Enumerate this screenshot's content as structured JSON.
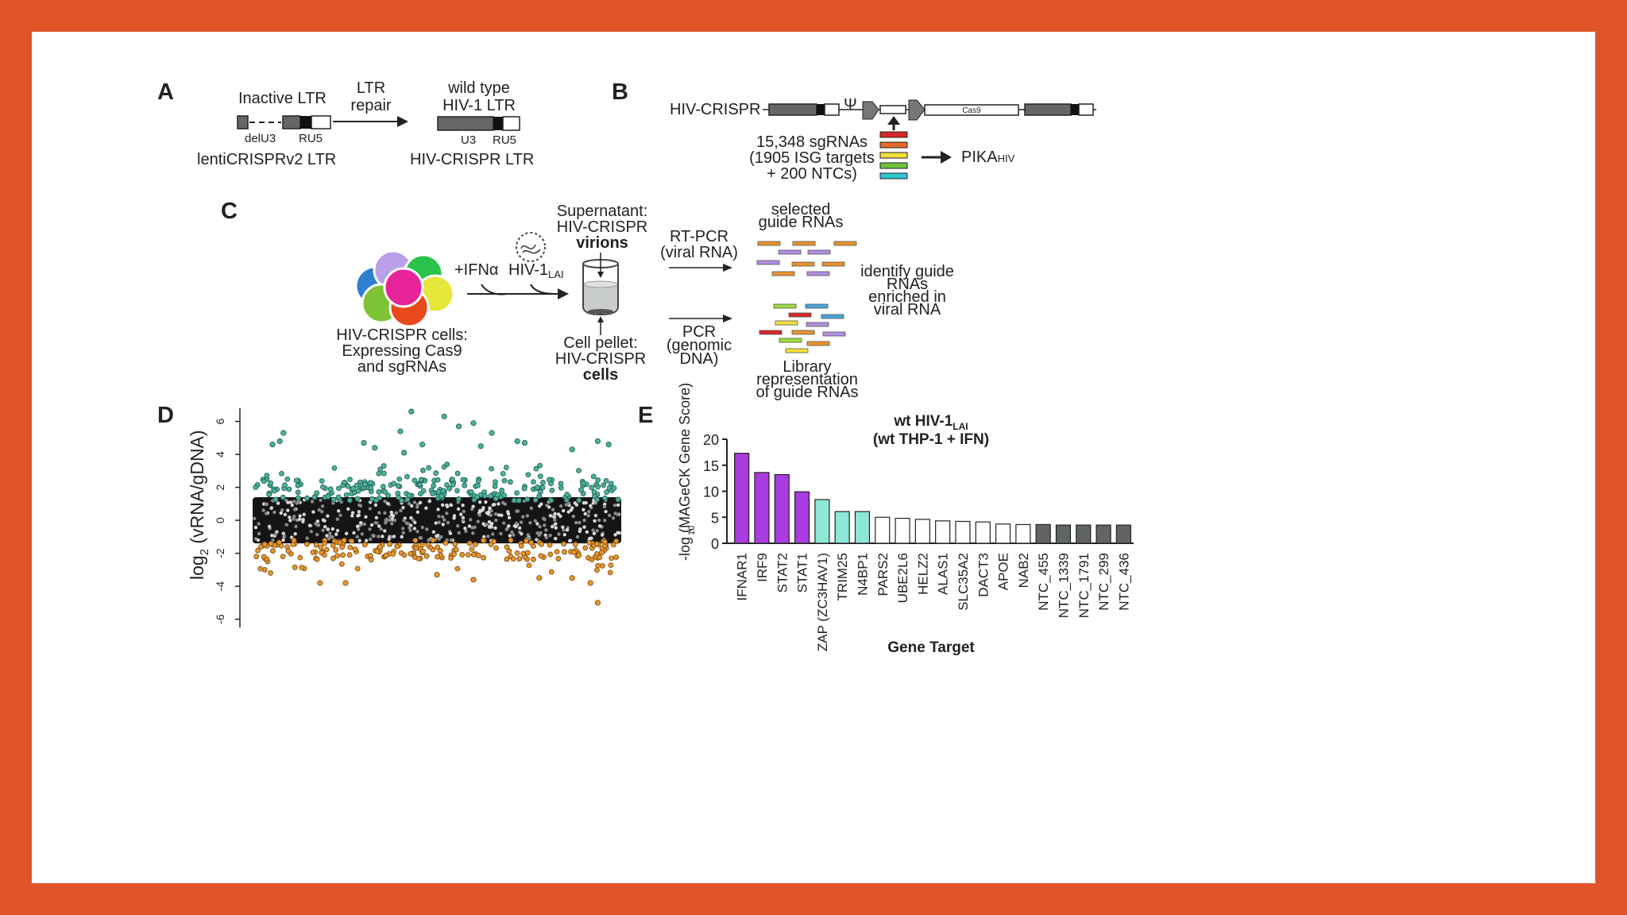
{
  "panels": {
    "a": {
      "label": "A",
      "inactive_ltr": "Inactive LTR",
      "delu3": "delU3",
      "ru5_left": "RU5",
      "lenti": "lentiCRISPRv2 LTR",
      "ltr_repair_1": "LTR",
      "ltr_repair_2": "repair",
      "wild_type_1": "wild type",
      "wild_type_2": "HIV-1 LTR",
      "u3": "U3",
      "ru5_right": "RU5",
      "hiv_crispr_ltr": "HIV-CRISPR LTR"
    },
    "b": {
      "label": "B",
      "construct": "HIV-CRISPR",
      "psi": "Ψ",
      "cas9": "Cas9",
      "lib_1": "15,348 sgRNAs",
      "lib_2": "(1905 ISG targets",
      "lib_3": "+ 200 NTCs)",
      "pika": "PIKA",
      "pika_sub": "HIV"
    },
    "c": {
      "label": "C",
      "cells_1": "HIV-CRISPR cells:",
      "cells_2": "Expressing Cas9",
      "cells_3": "and sgRNAs",
      "ifn": "+IFNα",
      "hiv": "HIV-1",
      "hiv_sub": "LAI",
      "sup_1": "Supernatant:",
      "sup_2": "HIV-CRISPR",
      "sup_3": "virions",
      "pel_1": "Cell pellet:",
      "pel_2": "HIV-CRISPR",
      "pel_3": "cells",
      "rtpcr_1": "RT-PCR",
      "rtpcr_2": "(viral RNA)",
      "pcr_1": "PCR",
      "pcr_2": "(genomic",
      "pcr_3": "DNA)",
      "sel_1": "selected",
      "sel_2": "guide RNAs",
      "lib_1": "Library",
      "lib_2": "representation",
      "lib_3": "of guide RNAs",
      "id_1": "identify guide",
      "id_2": "RNAs",
      "id_3": "enriched in",
      "id_4": "viral RNA"
    },
    "d": {
      "label": "D",
      "ylabel_pre": "log",
      "ylabel_sub": "2",
      "ylabel_post": " (vRNA/gDNA)"
    },
    "e": {
      "label": "E",
      "title_1": "wt HIV-1",
      "title_1_sub": "LAI",
      "title_2": "(wt THP-1 + IFN)",
      "ylabel": "-log  (MAGeCK Gene Score)",
      "ylabel_sub": "10",
      "xlabel": "Gene Target"
    }
  },
  "colors": {
    "border": "#e0542a",
    "purple": "#a93be0",
    "teal": "#8de8d6",
    "gray": "#606462",
    "green_dot": "#4cb09a",
    "orange_dot": "#e6962e"
  },
  "chart_data": [
    {
      "type": "bar",
      "panel": "E",
      "title": "wt HIV-1LAI (wt THP-1 + IFN)",
      "xlabel": "Gene Target",
      "ylabel": "-log10 (MAGeCK Gene Score)",
      "ylim": [
        0,
        20
      ],
      "yticks": [
        "0",
        "5",
        "10",
        "15",
        "20"
      ],
      "categories": [
        "IFNAR1",
        "IRF9",
        "STAT2",
        "STAT1",
        "ZAP (ZC3HAV1)",
        "TRIM25",
        "N4BP1",
        "PARS2",
        "UBE2L6",
        "HELZ2",
        "ALAS1",
        "SLC35A2",
        "DACT3",
        "APOE",
        "NAB2",
        "NTC_455",
        "NTC_1339",
        "NTC_1791",
        "NTC_299",
        "NTC_436"
      ],
      "values": [
        17.3,
        13.6,
        13.2,
        9.9,
        8.4,
        6.1,
        6.1,
        5.0,
        4.8,
        4.6,
        4.3,
        4.2,
        4.1,
        3.7,
        3.6,
        3.6,
        3.5,
        3.5,
        3.5,
        3.5
      ],
      "bar_groups": [
        "purple",
        "purple",
        "purple",
        "purple",
        "teal",
        "teal",
        "teal",
        "white",
        "white",
        "white",
        "white",
        "white",
        "white",
        "white",
        "white",
        "gray",
        "gray",
        "gray",
        "gray",
        "gray"
      ]
    },
    {
      "type": "scatter",
      "panel": "D",
      "ylabel": "log2 (vRNA/gDNA)",
      "ylim": [
        -6.5,
        6.8
      ],
      "yticks": [
        "6",
        "4",
        "2",
        "0",
        "-2",
        "-4",
        "-6"
      ],
      "outliers_high": [
        [
          0.05,
          4.6
        ],
        [
          0.07,
          4.8
        ],
        [
          0.08,
          5.3
        ],
        [
          0.3,
          4.7
        ],
        [
          0.33,
          4.4
        ],
        [
          0.4,
          5.4
        ],
        [
          0.41,
          4.1
        ],
        [
          0.43,
          6.6
        ],
        [
          0.46,
          4.6
        ],
        [
          0.52,
          6.3
        ],
        [
          0.56,
          5.7
        ],
        [
          0.6,
          5.9
        ],
        [
          0.62,
          4.5
        ],
        [
          0.65,
          5.3
        ],
        [
          0.72,
          4.8
        ],
        [
          0.74,
          4.7
        ],
        [
          0.87,
          4.3
        ],
        [
          0.94,
          4.8
        ],
        [
          0.97,
          4.6
        ]
      ],
      "outliers_low": [
        [
          0.18,
          -3.8
        ],
        [
          0.25,
          -3.8
        ],
        [
          0.5,
          -3.3
        ],
        [
          0.6,
          -3.6
        ],
        [
          0.78,
          -3.5
        ],
        [
          0.87,
          -3.5
        ],
        [
          0.92,
          -3.8
        ],
        [
          0.94,
          -5.0
        ]
      ]
    }
  ]
}
